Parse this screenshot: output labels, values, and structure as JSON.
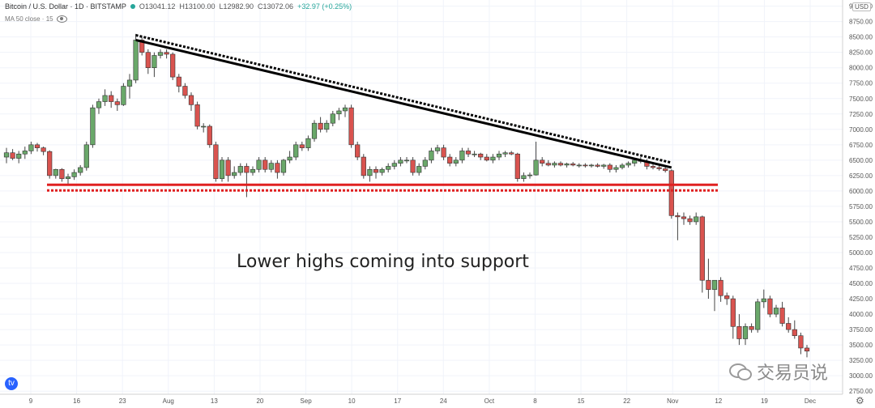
{
  "header": {
    "symbol": "Bitcoin / U.S. Dollar · 1D · BITSTAMP",
    "open": "O13041.12",
    "high": "H13100.00",
    "low": "L12982.90",
    "close": "C13072.06",
    "change": "+32.97 (+0.25%)",
    "indicator": "MA 50 close · 15"
  },
  "currency": "USD",
  "annotation": "Lower highs coming into support",
  "watermark": "交易员说",
  "tv_logo": "tv-logo",
  "colors": {
    "up": "#6aa86a",
    "down": "#d9534f",
    "trendline": "#000000",
    "support": "#e02020"
  },
  "chart_data": {
    "type": "candlestick",
    "y_ticks": [
      2750,
      3000,
      3250,
      3500,
      3750,
      4000,
      4250,
      4500,
      4750,
      5000,
      5250,
      5500,
      5750,
      6000,
      6250,
      6500,
      6750,
      7000,
      7250,
      7500,
      7750,
      8000,
      8250,
      8500,
      8750,
      9000
    ],
    "ylim": [
      2700,
      9100
    ],
    "x_ticks": [
      "9",
      "16",
      "23",
      "Aug",
      "13",
      "20",
      "Sep",
      "10",
      "17",
      "24",
      "Oct",
      "8",
      "15",
      "22",
      "Nov",
      "12",
      "19",
      "Dec"
    ],
    "candles": [
      {
        "o": 6550,
        "h": 6700,
        "l": 6450,
        "c": 6620
      },
      {
        "o": 6620,
        "h": 6680,
        "l": 6500,
        "c": 6530
      },
      {
        "o": 6530,
        "h": 6650,
        "l": 6450,
        "c": 6600
      },
      {
        "o": 6600,
        "h": 6720,
        "l": 6520,
        "c": 6650
      },
      {
        "o": 6650,
        "h": 6800,
        "l": 6600,
        "c": 6750
      },
      {
        "o": 6750,
        "h": 6780,
        "l": 6640,
        "c": 6700
      },
      {
        "o": 6700,
        "h": 6720,
        "l": 6580,
        "c": 6640
      },
      {
        "o": 6640,
        "h": 6660,
        "l": 6200,
        "c": 6250
      },
      {
        "o": 6250,
        "h": 6360,
        "l": 6200,
        "c": 6350
      },
      {
        "o": 6350,
        "h": 6370,
        "l": 6150,
        "c": 6200
      },
      {
        "o": 6200,
        "h": 6280,
        "l": 6100,
        "c": 6230
      },
      {
        "o": 6230,
        "h": 6350,
        "l": 6180,
        "c": 6300
      },
      {
        "o": 6300,
        "h": 6420,
        "l": 6250,
        "c": 6380
      },
      {
        "o": 6380,
        "h": 6800,
        "l": 6330,
        "c": 6750
      },
      {
        "o": 6750,
        "h": 7400,
        "l": 6700,
        "c": 7350
      },
      {
        "o": 7350,
        "h": 7500,
        "l": 7250,
        "c": 7450
      },
      {
        "o": 7450,
        "h": 7650,
        "l": 7380,
        "c": 7550
      },
      {
        "o": 7550,
        "h": 7620,
        "l": 7350,
        "c": 7450
      },
      {
        "o": 7450,
        "h": 7500,
        "l": 7300,
        "c": 7400
      },
      {
        "o": 7400,
        "h": 7750,
        "l": 7380,
        "c": 7700
      },
      {
        "o": 7700,
        "h": 7900,
        "l": 7500,
        "c": 7800
      },
      {
        "o": 7800,
        "h": 8550,
        "l": 7750,
        "c": 8450
      },
      {
        "o": 8450,
        "h": 8500,
        "l": 8200,
        "c": 8250
      },
      {
        "o": 8250,
        "h": 8300,
        "l": 7900,
        "c": 8000
      },
      {
        "o": 8000,
        "h": 8250,
        "l": 7850,
        "c": 8200
      },
      {
        "o": 8200,
        "h": 8300,
        "l": 8150,
        "c": 8250
      },
      {
        "o": 8250,
        "h": 8300,
        "l": 8150,
        "c": 8220
      },
      {
        "o": 8220,
        "h": 8250,
        "l": 7800,
        "c": 7850
      },
      {
        "o": 7850,
        "h": 7900,
        "l": 7600,
        "c": 7700
      },
      {
        "o": 7700,
        "h": 7750,
        "l": 7500,
        "c": 7550
      },
      {
        "o": 7550,
        "h": 7600,
        "l": 7300,
        "c": 7400
      },
      {
        "o": 7400,
        "h": 7450,
        "l": 7000,
        "c": 7050
      },
      {
        "o": 7050,
        "h": 7100,
        "l": 6950,
        "c": 7050
      },
      {
        "o": 7050,
        "h": 7080,
        "l": 6700,
        "c": 6750
      },
      {
        "o": 6750,
        "h": 6800,
        "l": 6150,
        "c": 6200
      },
      {
        "o": 6200,
        "h": 6550,
        "l": 6150,
        "c": 6500
      },
      {
        "o": 6500,
        "h": 6550,
        "l": 6150,
        "c": 6250
      },
      {
        "o": 6250,
        "h": 6400,
        "l": 6200,
        "c": 6300
      },
      {
        "o": 6300,
        "h": 6450,
        "l": 6250,
        "c": 6400
      },
      {
        "o": 6400,
        "h": 6450,
        "l": 5900,
        "c": 6300
      },
      {
        "o": 6300,
        "h": 6400,
        "l": 6250,
        "c": 6350
      },
      {
        "o": 6350,
        "h": 6550,
        "l": 6300,
        "c": 6500
      },
      {
        "o": 6500,
        "h": 6550,
        "l": 6300,
        "c": 6350
      },
      {
        "o": 6350,
        "h": 6500,
        "l": 6300,
        "c": 6450
      },
      {
        "o": 6450,
        "h": 6500,
        "l": 6200,
        "c": 6300
      },
      {
        "o": 6300,
        "h": 6520,
        "l": 6250,
        "c": 6500
      },
      {
        "o": 6500,
        "h": 6650,
        "l": 6450,
        "c": 6550
      },
      {
        "o": 6550,
        "h": 6800,
        "l": 6500,
        "c": 6750
      },
      {
        "o": 6750,
        "h": 6800,
        "l": 6650,
        "c": 6700
      },
      {
        "o": 6700,
        "h": 6900,
        "l": 6650,
        "c": 6850
      },
      {
        "o": 6850,
        "h": 7150,
        "l": 6800,
        "c": 7100
      },
      {
        "o": 7100,
        "h": 7200,
        "l": 6950,
        "c": 7000
      },
      {
        "o": 7000,
        "h": 7150,
        "l": 6950,
        "c": 7100
      },
      {
        "o": 7100,
        "h": 7300,
        "l": 7050,
        "c": 7250
      },
      {
        "o": 7250,
        "h": 7350,
        "l": 7150,
        "c": 7300
      },
      {
        "o": 7300,
        "h": 7400,
        "l": 7200,
        "c": 7350
      },
      {
        "o": 7350,
        "h": 7400,
        "l": 6700,
        "c": 6750
      },
      {
        "o": 6750,
        "h": 6800,
        "l": 6500,
        "c": 6550
      },
      {
        "o": 6550,
        "h": 6600,
        "l": 6200,
        "c": 6250
      },
      {
        "o": 6250,
        "h": 6400,
        "l": 6150,
        "c": 6350
      },
      {
        "o": 6350,
        "h": 6400,
        "l": 6200,
        "c": 6300
      },
      {
        "o": 6300,
        "h": 6380,
        "l": 6250,
        "c": 6350
      },
      {
        "o": 6350,
        "h": 6450,
        "l": 6300,
        "c": 6400
      },
      {
        "o": 6400,
        "h": 6500,
        "l": 6350,
        "c": 6450
      },
      {
        "o": 6450,
        "h": 6550,
        "l": 6400,
        "c": 6500
      },
      {
        "o": 6500,
        "h": 6550,
        "l": 6450,
        "c": 6500
      },
      {
        "o": 6500,
        "h": 6550,
        "l": 6250,
        "c": 6300
      },
      {
        "o": 6300,
        "h": 6450,
        "l": 6250,
        "c": 6400
      },
      {
        "o": 6400,
        "h": 6550,
        "l": 6350,
        "c": 6500
      },
      {
        "o": 6500,
        "h": 6700,
        "l": 6450,
        "c": 6650
      },
      {
        "o": 6650,
        "h": 6750,
        "l": 6600,
        "c": 6700
      },
      {
        "o": 6700,
        "h": 6750,
        "l": 6500,
        "c": 6550
      },
      {
        "o": 6550,
        "h": 6600,
        "l": 6400,
        "c": 6450
      },
      {
        "o": 6450,
        "h": 6550,
        "l": 6400,
        "c": 6500
      },
      {
        "o": 6500,
        "h": 6700,
        "l": 6450,
        "c": 6650
      },
      {
        "o": 6650,
        "h": 6700,
        "l": 6550,
        "c": 6600
      },
      {
        "o": 6600,
        "h": 6650,
        "l": 6550,
        "c": 6600
      },
      {
        "o": 6600,
        "h": 6620,
        "l": 6500,
        "c": 6550
      },
      {
        "o": 6550,
        "h": 6600,
        "l": 6480,
        "c": 6500
      },
      {
        "o": 6500,
        "h": 6600,
        "l": 6450,
        "c": 6550
      },
      {
        "o": 6550,
        "h": 6650,
        "l": 6500,
        "c": 6600
      },
      {
        "o": 6600,
        "h": 6650,
        "l": 6550,
        "c": 6620
      },
      {
        "o": 6620,
        "h": 6650,
        "l": 6580,
        "c": 6600
      },
      {
        "o": 6600,
        "h": 6620,
        "l": 6150,
        "c": 6200
      },
      {
        "o": 6200,
        "h": 6300,
        "l": 6150,
        "c": 6250
      },
      {
        "o": 6250,
        "h": 6300,
        "l": 6200,
        "c": 6260
      },
      {
        "o": 6260,
        "h": 6800,
        "l": 6250,
        "c": 6500
      },
      {
        "o": 6500,
        "h": 6550,
        "l": 6400,
        "c": 6450
      },
      {
        "o": 6450,
        "h": 6500,
        "l": 6400,
        "c": 6420
      },
      {
        "o": 6420,
        "h": 6480,
        "l": 6380,
        "c": 6450
      },
      {
        "o": 6450,
        "h": 6480,
        "l": 6400,
        "c": 6420
      },
      {
        "o": 6420,
        "h": 6460,
        "l": 6380,
        "c": 6440
      },
      {
        "o": 6440,
        "h": 6470,
        "l": 6400,
        "c": 6420
      },
      {
        "o": 6420,
        "h": 6450,
        "l": 6380,
        "c": 6420
      },
      {
        "o": 6420,
        "h": 6450,
        "l": 6380,
        "c": 6410
      },
      {
        "o": 6410,
        "h": 6440,
        "l": 6380,
        "c": 6420
      },
      {
        "o": 6420,
        "h": 6450,
        "l": 6380,
        "c": 6400
      },
      {
        "o": 6400,
        "h": 6440,
        "l": 6360,
        "c": 6420
      },
      {
        "o": 6420,
        "h": 6450,
        "l": 6300,
        "c": 6350
      },
      {
        "o": 6350,
        "h": 6420,
        "l": 6300,
        "c": 6380
      },
      {
        "o": 6380,
        "h": 6450,
        "l": 6350,
        "c": 6420
      },
      {
        "o": 6420,
        "h": 6480,
        "l": 6380,
        "c": 6450
      },
      {
        "o": 6450,
        "h": 6520,
        "l": 6400,
        "c": 6500
      },
      {
        "o": 6500,
        "h": 6550,
        "l": 6450,
        "c": 6480
      },
      {
        "o": 6480,
        "h": 6520,
        "l": 6350,
        "c": 6400
      },
      {
        "o": 6400,
        "h": 6450,
        "l": 6350,
        "c": 6380
      },
      {
        "o": 6380,
        "h": 6420,
        "l": 6330,
        "c": 6360
      },
      {
        "o": 6360,
        "h": 6400,
        "l": 6300,
        "c": 6330
      },
      {
        "o": 6330,
        "h": 6350,
        "l": 5550,
        "c": 5600
      },
      {
        "o": 5600,
        "h": 5650,
        "l": 5200,
        "c": 5580
      },
      {
        "o": 5580,
        "h": 5650,
        "l": 5450,
        "c": 5550
      },
      {
        "o": 5550,
        "h": 5600,
        "l": 5450,
        "c": 5500
      },
      {
        "o": 5500,
        "h": 5650,
        "l": 5450,
        "c": 5580
      },
      {
        "o": 5580,
        "h": 5600,
        "l": 4350,
        "c": 4550
      },
      {
        "o": 4550,
        "h": 4900,
        "l": 4250,
        "c": 4400
      },
      {
        "o": 4400,
        "h": 4550,
        "l": 4050,
        "c": 4550
      },
      {
        "o": 4550,
        "h": 4600,
        "l": 4200,
        "c": 4300
      },
      {
        "o": 4300,
        "h": 4350,
        "l": 4150,
        "c": 4250
      },
      {
        "o": 4250,
        "h": 4300,
        "l": 3600,
        "c": 3800
      },
      {
        "o": 3800,
        "h": 4000,
        "l": 3500,
        "c": 3600
      },
      {
        "o": 3600,
        "h": 3850,
        "l": 3500,
        "c": 3800
      },
      {
        "o": 3800,
        "h": 3850,
        "l": 3700,
        "c": 3750
      },
      {
        "o": 3750,
        "h": 4250,
        "l": 3700,
        "c": 4200
      },
      {
        "o": 4200,
        "h": 4400,
        "l": 4100,
        "c": 4250
      },
      {
        "o": 4250,
        "h": 4300,
        "l": 3950,
        "c": 4000
      },
      {
        "o": 4000,
        "h": 4150,
        "l": 3950,
        "c": 4100
      },
      {
        "o": 4100,
        "h": 4200,
        "l": 3800,
        "c": 3850
      },
      {
        "o": 3850,
        "h": 3950,
        "l": 3700,
        "c": 3750
      },
      {
        "o": 3750,
        "h": 3900,
        "l": 3600,
        "c": 3650
      },
      {
        "o": 3650,
        "h": 3700,
        "l": 3350,
        "c": 3450
      },
      {
        "o": 3450,
        "h": 3500,
        "l": 3300,
        "c": 3400
      }
    ],
    "trendline": {
      "start": 8450,
      "end": 6380
    },
    "support": 6100
  }
}
